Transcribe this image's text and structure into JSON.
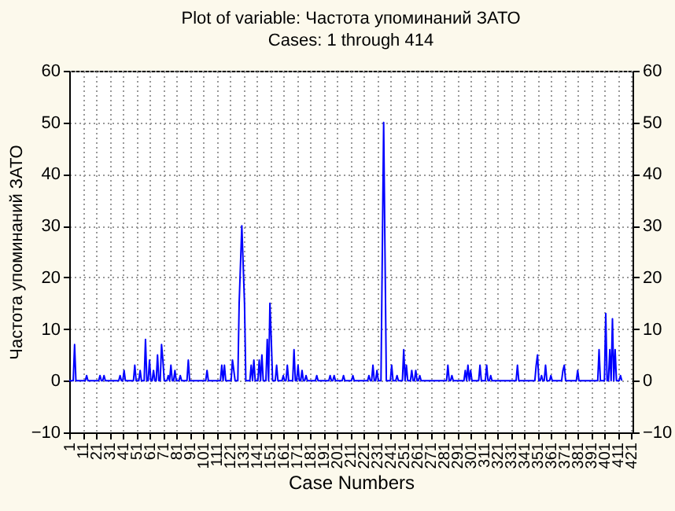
{
  "chart_data": {
    "type": "line",
    "title": "Plot of variable: Частота упоминаний ЗАТО",
    "subtitle": "Cases: 1 through 414",
    "xlabel": "Case Numbers",
    "ylabel": "Частота упоминаний ЗАТО",
    "x": [
      1,
      4,
      5,
      6,
      13,
      14,
      15,
      23,
      24,
      25,
      26,
      27,
      28,
      38,
      39,
      40,
      41,
      42,
      43,
      49,
      50,
      51,
      53,
      54,
      55,
      57,
      58,
      59,
      60,
      61,
      62,
      63,
      64,
      65,
      66,
      67,
      68,
      69,
      70,
      71,
      72,
      74,
      75,
      76,
      77,
      78,
      79,
      80,
      81,
      83,
      84,
      85,
      89,
      90,
      91,
      103,
      104,
      105,
      114,
      115,
      116,
      117,
      118,
      122,
      123,
      124,
      125,
      127,
      128,
      130,
      132,
      133,
      136,
      137,
      138,
      139,
      140,
      142,
      143,
      144,
      145,
      146,
      148,
      149,
      150,
      151,
      152,
      153,
      155,
      156,
      157,
      160,
      161,
      162,
      163,
      164,
      165,
      168,
      169,
      170,
      171,
      172,
      173,
      174,
      175,
      176,
      177,
      178,
      179,
      185,
      186,
      187,
      195,
      196,
      197,
      198,
      199,
      200,
      205,
      206,
      207,
      212,
      213,
      214,
      224,
      225,
      226,
      227,
      228,
      229,
      230,
      231,
      232,
      234,
      235,
      236,
      237,
      238,
      241,
      242,
      243,
      245,
      246,
      247,
      250,
      251,
      252,
      253,
      254,
      256,
      257,
      258,
      259,
      260,
      261,
      262,
      263,
      264,
      283,
      284,
      285,
      286,
      287,
      288,
      296,
      297,
      298,
      299,
      300,
      301,
      302,
      307,
      308,
      309,
      312,
      313,
      314,
      315,
      316,
      317,
      335,
      336,
      337,
      349,
      350,
      351,
      352,
      353,
      354,
      355,
      356,
      357,
      358,
      360,
      361,
      362,
      369,
      370,
      371,
      372,
      380,
      381,
      382,
      396,
      397,
      398,
      401,
      402,
      403,
      404,
      405,
      406,
      407,
      408,
      409,
      410,
      412,
      413,
      414
    ],
    "series": [
      {
        "color": "#0000ff",
        "values": [
          0,
          0,
          7,
          0,
          0,
          1,
          0,
          0,
          1,
          0,
          0,
          1,
          0,
          0,
          1,
          0,
          0,
          2,
          0,
          0,
          3,
          0,
          0,
          2,
          0,
          0,
          8,
          0,
          0,
          4,
          0,
          0,
          2,
          0,
          0,
          5,
          0,
          0,
          7,
          4,
          0,
          0,
          1,
          0,
          3,
          0,
          0,
          2,
          0,
          0,
          1,
          0,
          0,
          4,
          0,
          0,
          2,
          0,
          0,
          3,
          0,
          3,
          0,
          0,
          4,
          2,
          0,
          0,
          15,
          30,
          15,
          0,
          0,
          3,
          0,
          4,
          0,
          0,
          4,
          0,
          5,
          0,
          0,
          8,
          0,
          15,
          8,
          0,
          0,
          3,
          0,
          0,
          1,
          0,
          0,
          3,
          0,
          0,
          6,
          0,
          0,
          3,
          0,
          0,
          2,
          0,
          0,
          1,
          0,
          0,
          1,
          0,
          0,
          1,
          0,
          0,
          1,
          0,
          0,
          1,
          0,
          0,
          1,
          0,
          0,
          1,
          0,
          0,
          3,
          0,
          0,
          2,
          0,
          0,
          25,
          50,
          25,
          0,
          0,
          3,
          0,
          0,
          1,
          0,
          0,
          6,
          0,
          3,
          0,
          0,
          2,
          0,
          0,
          2,
          0,
          0,
          1,
          0,
          0,
          3,
          0,
          0,
          1,
          0,
          0,
          2,
          0,
          3,
          0,
          2,
          0,
          0,
          3,
          0,
          0,
          3,
          0,
          0,
          1,
          0,
          0,
          3,
          0,
          0,
          3,
          5,
          0,
          0,
          1,
          0,
          0,
          3,
          0,
          0,
          1,
          0,
          0,
          2,
          3,
          0,
          0,
          2,
          0,
          0,
          6,
          0,
          0,
          13,
          0,
          0,
          6,
          0,
          12,
          0,
          6,
          0,
          0,
          1,
          0
        ]
      }
    ],
    "xlim": [
      1,
      422
    ],
    "xticks": [
      1,
      11,
      21,
      31,
      41,
      51,
      61,
      71,
      81,
      91,
      101,
      111,
      121,
      131,
      141,
      151,
      161,
      171,
      181,
      191,
      201,
      211,
      221,
      231,
      241,
      251,
      261,
      271,
      281,
      291,
      301,
      311,
      321,
      331,
      341,
      351,
      361,
      371,
      381,
      391,
      401,
      411,
      421
    ],
    "ylim": [
      -10,
      60
    ],
    "yticks": [
      -10,
      0,
      10,
      20,
      30,
      40,
      50,
      60
    ],
    "y2lim": [
      -10,
      60
    ],
    "y2ticks": [
      -10,
      0,
      10,
      20,
      30,
      40,
      50,
      60
    ],
    "grid": true,
    "marker": "none",
    "line_style": "solid"
  }
}
